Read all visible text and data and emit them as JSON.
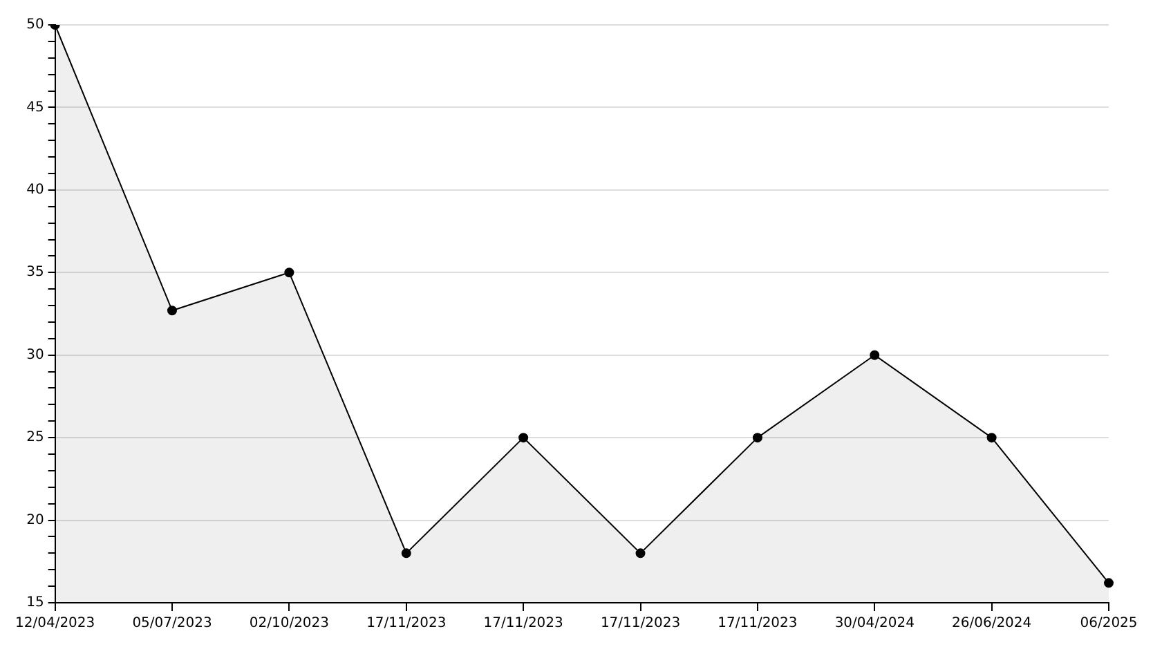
{
  "chart_data": {
    "type": "area",
    "categories": [
      "12/04/2023",
      "05/07/2023",
      "02/10/2023",
      "17/11/2023",
      "17/11/2023",
      "17/11/2023",
      "17/11/2023",
      "30/04/2024",
      "26/06/2024",
      "06/2025"
    ],
    "series": [
      {
        "color": "#000000",
        "values": [
          50,
          32.7,
          35,
          18,
          25,
          18,
          25,
          30,
          25,
          16.2
        ]
      }
    ],
    "ylim": [
      15,
      50
    ],
    "yticks": [
      15,
      {
        "value": 16,
        "label": null
      },
      {
        "value": 17,
        "label": null
      },
      {
        "value": 18,
        "label": null
      },
      {
        "value": 19,
        "label": null
      },
      20,
      {
        "value": 21,
        "label": null
      },
      {
        "value": 22,
        "label": null
      },
      {
        "value": 23,
        "label": null
      },
      {
        "value": 24,
        "label": null
      },
      25,
      {
        "value": 26,
        "label": null
      },
      {
        "value": 27,
        "label": null
      },
      {
        "value": 28,
        "label": null
      },
      {
        "value": 29,
        "label": null
      },
      30,
      {
        "value": 31,
        "label": null
      },
      {
        "value": 32,
        "label": null
      },
      {
        "value": 33,
        "label": null
      },
      {
        "value": 34,
        "label": null
      },
      35,
      {
        "value": 36,
        "label": null
      },
      {
        "value": 37,
        "label": null
      },
      {
        "value": 38,
        "label": null
      },
      {
        "value": 39,
        "label": null
      },
      40,
      {
        "value": 41,
        "label": null
      },
      {
        "value": 42,
        "label": null
      },
      {
        "value": 43,
        "label": null
      },
      {
        "value": 44,
        "label": null
      },
      45,
      {
        "value": 46,
        "label": null
      },
      {
        "value": 47,
        "label": null
      },
      {
        "value": 48,
        "label": null
      },
      {
        "value": 49,
        "label": null
      },
      50
    ],
    "grid": "y",
    "legend": false,
    "marker": "circle",
    "line_style": "solid"
  }
}
